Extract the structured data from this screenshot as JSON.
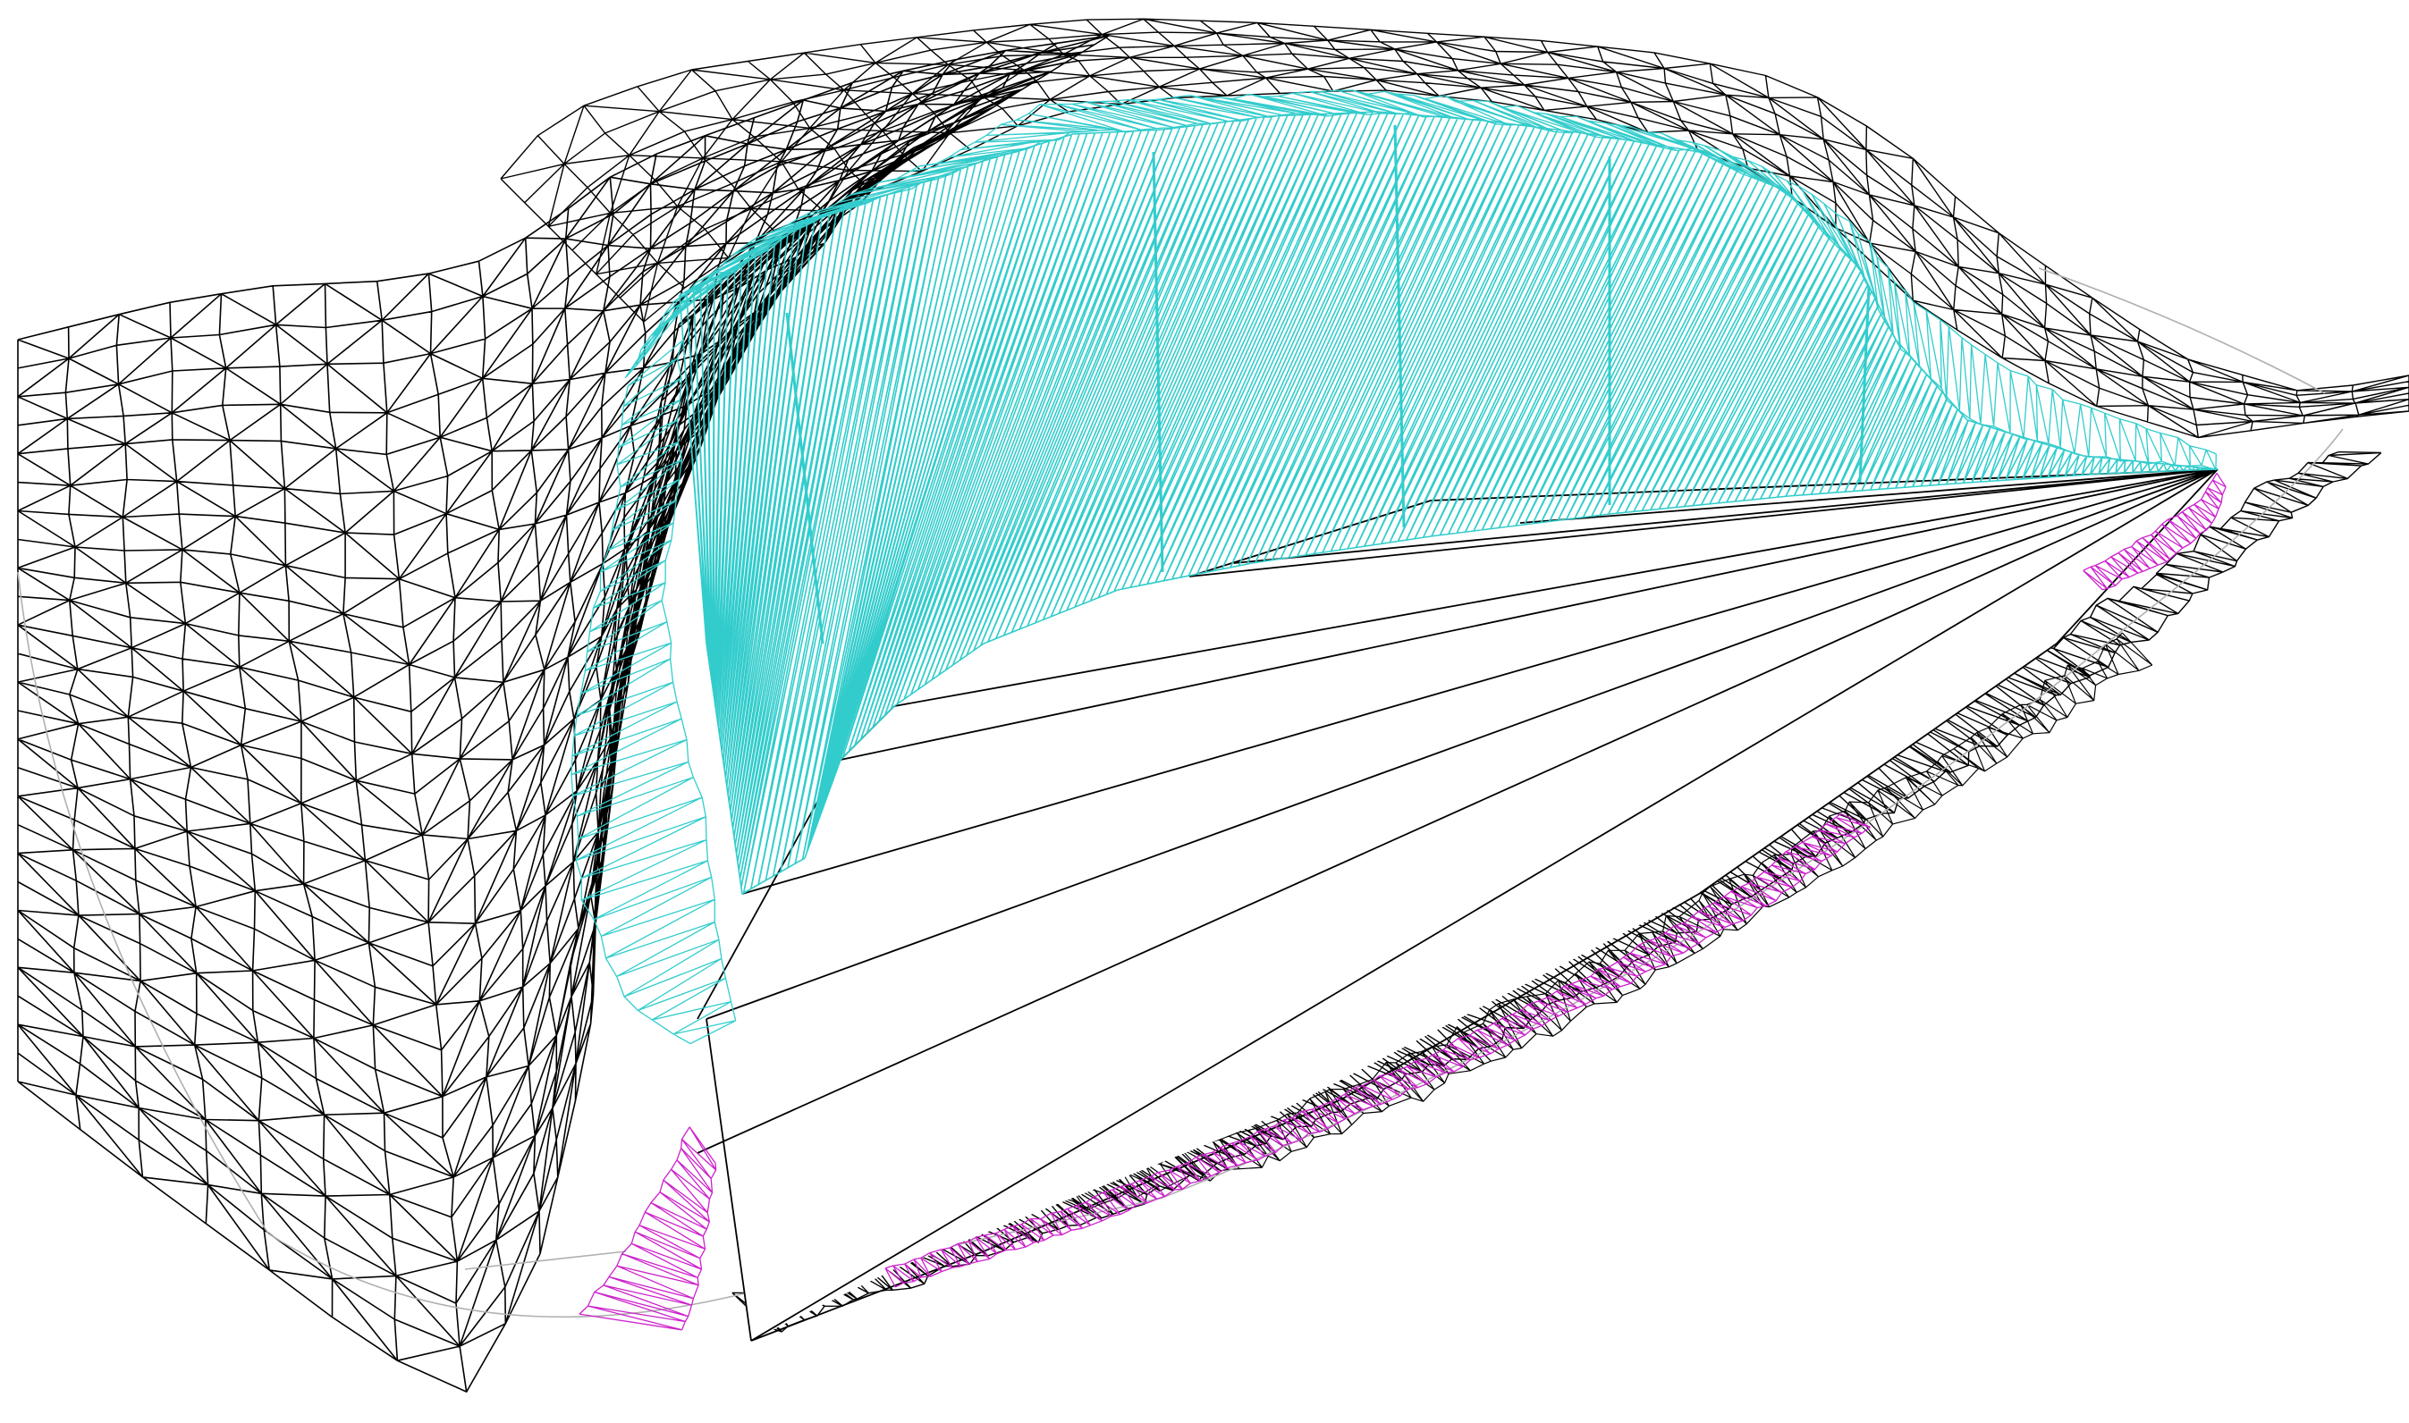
{
  "view": {
    "background": "#ffffff",
    "colors": {
      "terrain": "#000000",
      "excavation_face": "#33cccc",
      "fill_slope": "#cc22cc",
      "boundary": "#b0b0b0"
    }
  }
}
